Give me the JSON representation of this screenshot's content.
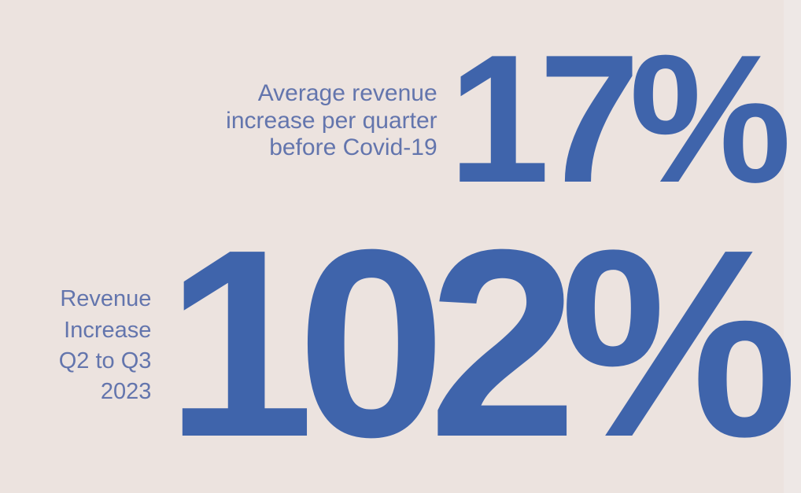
{
  "stats": [
    {
      "label_lines": [
        "Average revenue",
        "increase per quarter",
        "before Covid-19"
      ],
      "value": "17%"
    },
    {
      "label_lines": [
        "Revenue",
        "Increase",
        "Q2 to Q3",
        "2023"
      ],
      "value": "102%"
    }
  ],
  "colors": {
    "background": "#ece3df",
    "value_blue": "#3f64ab",
    "label_blue": "#6375ad"
  }
}
